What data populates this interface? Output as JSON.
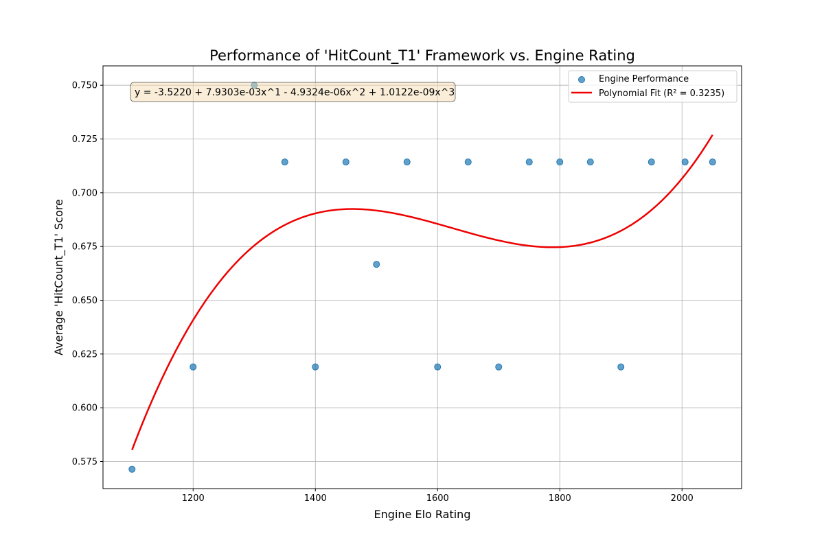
{
  "chart_data": {
    "type": "scatter",
    "title": "Performance of 'HitCount_T1' Framework vs. Engine Rating",
    "xlabel": "Engine Elo Rating",
    "ylabel": "Average 'HitCount_T1' Score",
    "xlim": [
      1052.5,
      2097.5
    ],
    "ylim": [
      0.5624,
      0.759
    ],
    "x_ticks": [
      1200,
      1400,
      1600,
      1800,
      2000
    ],
    "y_ticks": [
      0.575,
      0.6,
      0.625,
      0.65,
      0.675,
      0.7,
      0.725,
      0.75
    ],
    "x_tick_labels": [
      "1200",
      "1400",
      "1600",
      "1800",
      "2000"
    ],
    "y_tick_labels": [
      "0.575",
      "0.600",
      "0.625",
      "0.650",
      "0.675",
      "0.700",
      "0.725",
      "0.750"
    ],
    "grid": true,
    "legend_position": "top-right",
    "series": [
      {
        "name": "Engine Performance",
        "kind": "scatter",
        "color": "#1f77b4",
        "points": [
          {
            "x": 1100,
            "y": 0.5714
          },
          {
            "x": 1200,
            "y": 0.619
          },
          {
            "x": 1300,
            "y": 0.75
          },
          {
            "x": 1350,
            "y": 0.7143
          },
          {
            "x": 1400,
            "y": 0.619
          },
          {
            "x": 1450,
            "y": 0.7143
          },
          {
            "x": 1500,
            "y": 0.6667
          },
          {
            "x": 1550,
            "y": 0.7143
          },
          {
            "x": 1600,
            "y": 0.619
          },
          {
            "x": 1650,
            "y": 0.7143
          },
          {
            "x": 1700,
            "y": 0.619
          },
          {
            "x": 1750,
            "y": 0.7143
          },
          {
            "x": 1800,
            "y": 0.7143
          },
          {
            "x": 1850,
            "y": 0.7143
          },
          {
            "x": 1900,
            "y": 0.619
          },
          {
            "x": 1950,
            "y": 0.7143
          },
          {
            "x": 2005,
            "y": 0.7143
          },
          {
            "x": 2050,
            "y": 0.7143
          }
        ]
      },
      {
        "name": "Polynomial Fit (R² = 0.3235)",
        "kind": "line",
        "color": "#ee0000",
        "x_range": [
          1100,
          2050
        ],
        "coefficients": [
          -3.522,
          0.0079303,
          -4.9324e-06,
          1.0122e-09
        ]
      }
    ],
    "annotation": "y = -3.5220 + 7.9303e-03x^1 - 4.9324e-06x^2 + 1.0122e-09x^3"
  }
}
